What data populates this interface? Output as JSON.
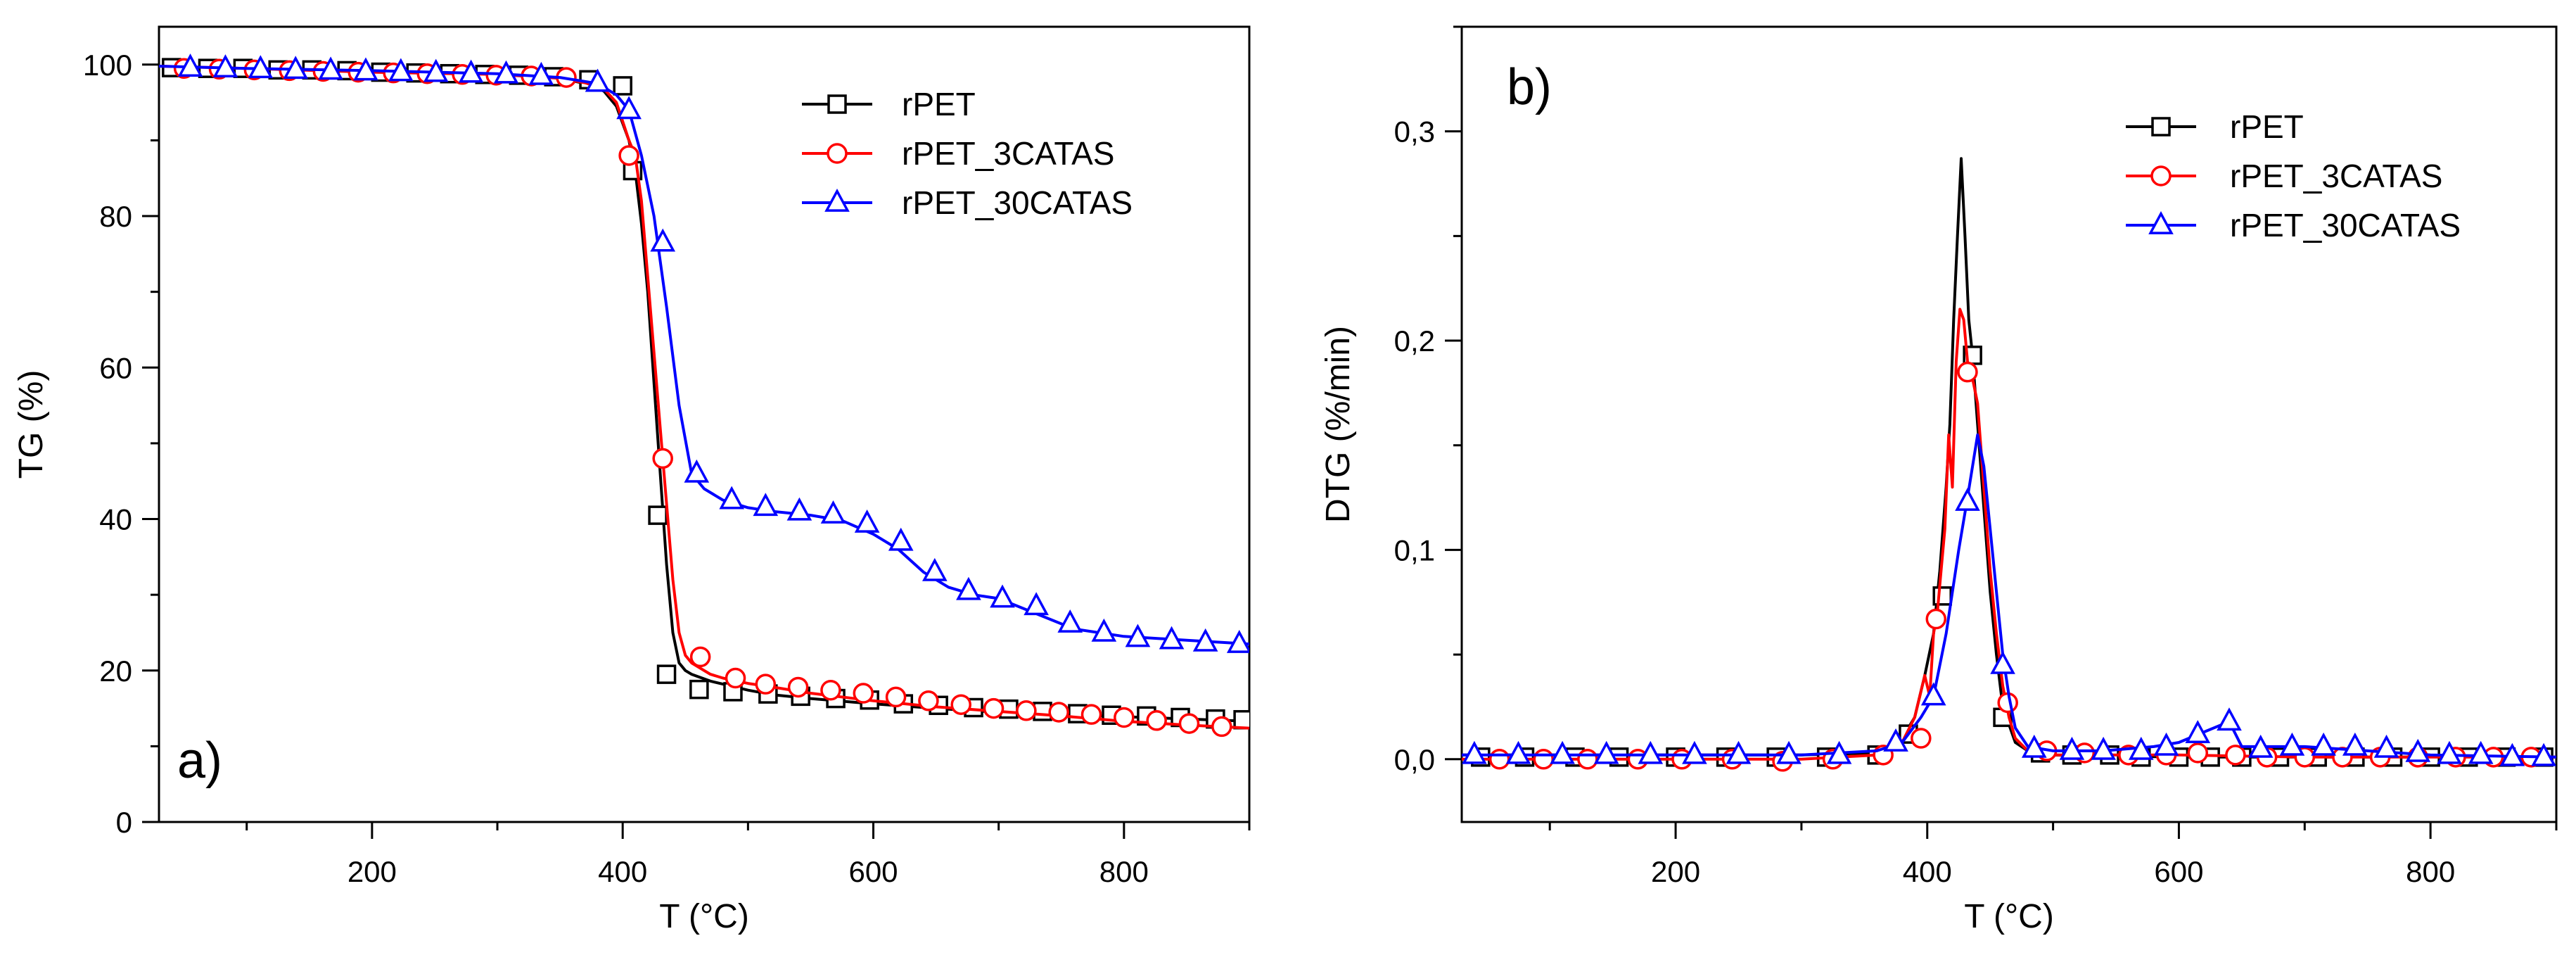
{
  "chart_data": [
    {
      "type": "line",
      "panel_label": "a)",
      "xlabel": "T (°C)",
      "ylabel": "TG (%)",
      "xlim": [
        30,
        900
      ],
      "ylim": [
        0,
        105
      ],
      "xticks": [
        200,
        400,
        600,
        800
      ],
      "yticks": [
        0,
        20,
        40,
        60,
        80,
        100
      ],
      "xtick_labels": [
        "200",
        "400",
        "600",
        "800"
      ],
      "ytick_labels": [
        "0",
        "20",
        "40",
        "60",
        "80",
        "100"
      ],
      "grid": false,
      "legend": "top-right",
      "series": [
        {
          "name": "rPET",
          "color": "#000000",
          "marker": "square",
          "x": [
            30,
            100,
            200,
            300,
            350,
            370,
            385,
            395,
            405,
            410,
            415,
            420,
            425,
            430,
            435,
            440,
            445,
            450,
            455,
            460,
            470,
            480,
            500,
            520,
            550,
            600,
            650,
            700,
            750,
            800,
            850,
            900
          ],
          "y": [
            99.8,
            99.5,
            99,
            98.7,
            98.2,
            97.5,
            96.5,
            94.5,
            90,
            86,
            79,
            70,
            58,
            46,
            34,
            25,
            21,
            20,
            19.5,
            19.2,
            18.6,
            18.2,
            17.4,
            16.8,
            16.3,
            15.6,
            15,
            14.5,
            14.2,
            13.9,
            13.6,
            13.3
          ],
          "markers_x": [
            40,
            69,
            97,
            125,
            152,
            180,
            207,
            235,
            262,
            290,
            317,
            345,
            373,
            400,
            408,
            428,
            435,
            461,
            488,
            516,
            542,
            570,
            597,
            624,
            652,
            680,
            708,
            735,
            763,
            790,
            818,
            845,
            873,
            895
          ],
          "markers_y": [
            99.6,
            99.5,
            99.5,
            99.3,
            99.3,
            99.2,
            99,
            98.9,
            98.8,
            98.7,
            98.6,
            98.4,
            98,
            97.2,
            86,
            40.5,
            19.5,
            17.5,
            17.2,
            16.9,
            16.6,
            16.3,
            16.1,
            15.6,
            15.4,
            15.1,
            14.9,
            14.6,
            14.3,
            14.1,
            14,
            13.8,
            13.6,
            13.5
          ]
        },
        {
          "name": "rPET_3CATAS",
          "color": "#ff0000",
          "marker": "circle",
          "x": [
            30,
            100,
            200,
            300,
            350,
            370,
            385,
            395,
            405,
            410,
            415,
            420,
            425,
            430,
            435,
            440,
            445,
            450,
            455,
            460,
            470,
            480,
            500,
            520,
            550,
            600,
            650,
            700,
            750,
            800,
            850,
            900
          ],
          "y": [
            99.8,
            99.5,
            99,
            98.7,
            98.2,
            97.6,
            96.8,
            95,
            90,
            88,
            82,
            72,
            62,
            52,
            42,
            32,
            25,
            22,
            21,
            20.5,
            19.5,
            19,
            18.3,
            17.8,
            17,
            16,
            15.2,
            14.6,
            14,
            13.3,
            12.8,
            12.4
          ],
          "markers_x": [
            50,
            78,
            106,
            134,
            161,
            189,
            217,
            244,
            272,
            299,
            327,
            355,
            405,
            432,
            462,
            490,
            514,
            540,
            566,
            592,
            618,
            644,
            670,
            696,
            722,
            748,
            774,
            800,
            826,
            852,
            878
          ],
          "markers_y": [
            99.5,
            99.4,
            99.3,
            99.2,
            99.1,
            99,
            98.9,
            98.8,
            98.7,
            98.6,
            98.5,
            98.3,
            88,
            48,
            21.8,
            19,
            18.2,
            17.8,
            17.4,
            17,
            16.5,
            16,
            15.5,
            15,
            14.7,
            14.5,
            14.2,
            13.8,
            13.4,
            13,
            12.6
          ]
        },
        {
          "name": "rPET_30CATAS",
          "color": "#0000ff",
          "marker": "triangle",
          "x": [
            30,
            100,
            200,
            300,
            350,
            380,
            395,
            405,
            415,
            425,
            435,
            445,
            455,
            465,
            480,
            500,
            520,
            550,
            575,
            600,
            620,
            640,
            660,
            680,
            700,
            730,
            760,
            800,
            850,
            900
          ],
          "y": [
            99.8,
            99.5,
            99.2,
            98.8,
            98.3,
            97.5,
            96,
            94,
            88,
            80,
            68,
            55,
            46,
            44,
            42.5,
            41.5,
            41,
            40.5,
            39.8,
            38,
            36,
            33,
            31,
            30,
            29.5,
            27.5,
            25.5,
            24.5,
            24,
            23.5
          ],
          "markers_x": [
            55,
            83,
            111,
            139,
            167,
            195,
            223,
            251,
            279,
            307,
            335,
            380,
            405,
            432,
            459,
            487,
            514,
            541,
            568,
            595,
            622,
            649,
            676,
            703,
            730,
            757,
            784,
            811,
            838,
            865,
            892
          ],
          "markers_y": [
            99.6,
            99.5,
            99.4,
            99.3,
            99.2,
            99.1,
            99,
            98.9,
            98.8,
            98.7,
            98.5,
            97.6,
            94,
            76.5,
            46,
            42.5,
            41.6,
            41,
            40.6,
            39.4,
            37,
            33,
            30.5,
            29.5,
            28.5,
            26.2,
            25,
            24.3,
            24,
            23.7,
            23.5
          ]
        }
      ]
    },
    {
      "type": "line",
      "panel_label": "b)",
      "xlabel": "T (°C)",
      "ylabel": "DTG (%/min)",
      "xlim": [
        30,
        900
      ],
      "ylim": [
        -0.03,
        0.35
      ],
      "xticks": [
        200,
        400,
        600,
        800
      ],
      "yticks": [
        0,
        0.1,
        0.2,
        0.3
      ],
      "xtick_labels": [
        "200",
        "400",
        "600",
        "800"
      ],
      "ytick_labels": [
        "0,0",
        "0,1",
        "0,2",
        "0,3"
      ],
      "grid": false,
      "legend": "top-right",
      "series": [
        {
          "name": "rPET",
          "color": "#000000",
          "marker": "square",
          "x": [
            30,
            300,
            360,
            380,
            390,
            398,
            405,
            410,
            415,
            418,
            421,
            424,
            427,
            430,
            433,
            436,
            440,
            445,
            450,
            455,
            460,
            470,
            480,
            500,
            600,
            700,
            800,
            900
          ],
          "y": [
            0.002,
            0.002,
            0.003,
            0.01,
            0.02,
            0.04,
            0.06,
            0.09,
            0.13,
            0.16,
            0.21,
            0.25,
            0.287,
            0.25,
            0.21,
            0.193,
            0.16,
            0.12,
            0.08,
            0.05,
            0.025,
            0.008,
            0.004,
            0.002,
            0.001,
            0.001,
            0.001,
            0.001
          ],
          "markers_x": [
            45,
            80,
            120,
            155,
            200,
            240,
            280,
            320,
            360,
            385,
            412,
            436,
            460,
            490,
            515,
            545,
            570,
            600,
            625,
            650,
            680,
            710,
            740,
            770,
            800,
            830,
            860,
            890
          ],
          "markers_y": [
            0.001,
            0.001,
            0.001,
            0.001,
            0.001,
            0.001,
            0.001,
            0.001,
            0.002,
            0.012,
            0.078,
            0.193,
            0.02,
            0.003,
            0.002,
            0.002,
            0.001,
            0.001,
            0.001,
            0.001,
            0.001,
            0.001,
            0.001,
            0.001,
            0.001,
            0.001,
            0.001,
            0.001
          ]
        },
        {
          "name": "rPET_3CATAS",
          "color": "#ff0000",
          "marker": "circle",
          "x": [
            30,
            300,
            360,
            380,
            390,
            398,
            402,
            405,
            408,
            411,
            414,
            417,
            420,
            423,
            426,
            429,
            432,
            435,
            440,
            445,
            450,
            455,
            460,
            465,
            470,
            480,
            500,
            600,
            700,
            800,
            900
          ],
          "y": [
            0,
            0,
            0.002,
            0.008,
            0.02,
            0.04,
            0.03,
            0.06,
            0.07,
            0.09,
            0.11,
            0.155,
            0.13,
            0.19,
            0.215,
            0.21,
            0.19,
            0.185,
            0.17,
            0.13,
            0.09,
            0.06,
            0.035,
            0.02,
            0.01,
            0.004,
            0.002,
            0.002,
            0.001,
            0.001,
            0.001
          ],
          "markers_x": [
            60,
            95,
            130,
            170,
            205,
            245,
            285,
            325,
            365,
            395,
            407,
            432,
            464,
            495,
            525,
            560,
            590,
            615,
            645,
            670,
            700,
            730,
            760,
            790,
            820,
            850,
            880
          ],
          "markers_y": [
            0,
            0,
            0,
            0,
            0,
            0,
            -0.001,
            0,
            0.002,
            0.01,
            0.067,
            0.185,
            0.027,
            0.004,
            0.003,
            0.002,
            0.002,
            0.003,
            0.002,
            0.001,
            0.001,
            0.001,
            0.001,
            0.001,
            0.001,
            0.001,
            0.001
          ]
        },
        {
          "name": "rPET_30CATAS",
          "color": "#0000ff",
          "marker": "triangle",
          "x": [
            30,
            300,
            360,
            380,
            395,
            405,
            415,
            425,
            432,
            440,
            445,
            450,
            455,
            460,
            465,
            470,
            480,
            500,
            540,
            580,
            600,
            620,
            640,
            650,
            670,
            700,
            750,
            800,
            900
          ],
          "y": [
            0.002,
            0.002,
            0.004,
            0.008,
            0.02,
            0.03,
            0.06,
            0.1,
            0.125,
            0.155,
            0.14,
            0.11,
            0.08,
            0.05,
            0.03,
            0.015,
            0.006,
            0.004,
            0.004,
            0.006,
            0.008,
            0.013,
            0.018,
            0.006,
            0.006,
            0.006,
            0.004,
            0.002,
            0.001
          ],
          "markers_x": [
            40,
            75,
            110,
            145,
            180,
            215,
            250,
            290,
            330,
            375,
            405,
            432,
            460,
            485,
            515,
            540,
            570,
            590,
            615,
            640,
            665,
            690,
            715,
            740,
            765,
            790,
            815,
            840,
            865,
            890
          ],
          "markers_y": [
            0.002,
            0.002,
            0.002,
            0.002,
            0.002,
            0.002,
            0.002,
            0.002,
            0.002,
            0.008,
            0.03,
            0.123,
            0.045,
            0.005,
            0.004,
            0.004,
            0.004,
            0.006,
            0.012,
            0.018,
            0.005,
            0.006,
            0.006,
            0.006,
            0.005,
            0.003,
            0.002,
            0.002,
            0.001,
            0.001
          ]
        }
      ]
    }
  ]
}
